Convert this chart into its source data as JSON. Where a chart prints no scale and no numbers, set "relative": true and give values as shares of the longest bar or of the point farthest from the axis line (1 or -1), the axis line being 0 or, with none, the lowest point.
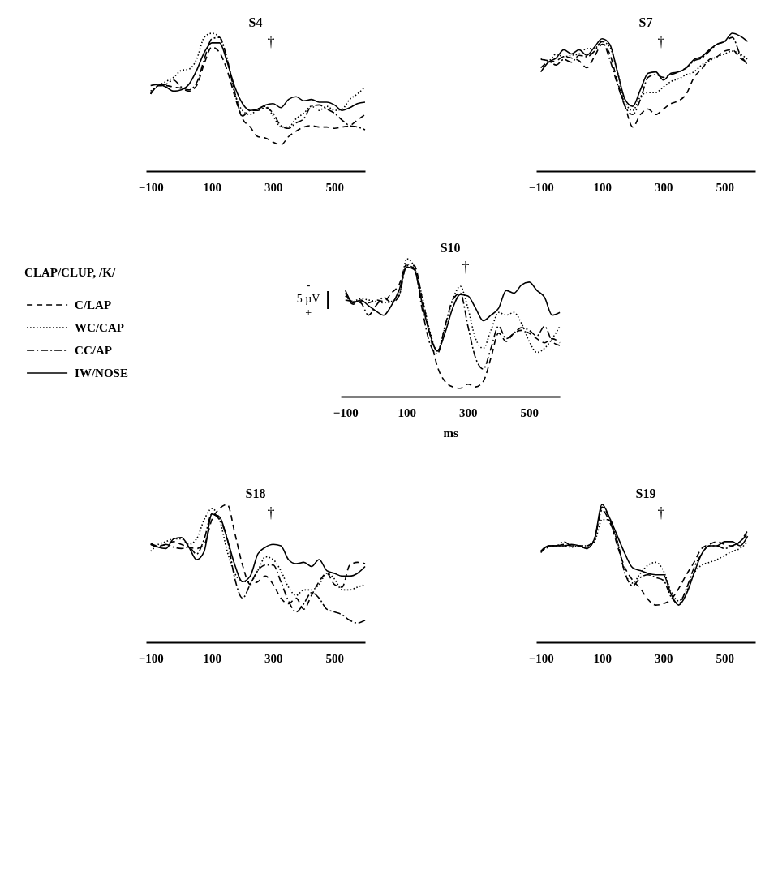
{
  "chart_data": [
    {
      "type": "line",
      "title": "S4",
      "relative": true,
      "xlim": [
        -115,
        600
      ],
      "xticks": [
        -100,
        100,
        300,
        500
      ],
      "grid": false,
      "legend": false,
      "x": [
        -100,
        -75,
        -50,
        -25,
        0,
        25,
        50,
        75,
        100,
        125,
        150,
        175,
        200,
        225,
        250,
        275,
        300,
        325,
        350,
        375,
        400,
        425,
        450,
        475,
        500,
        525,
        550,
        575,
        600
      ],
      "annotations": [
        "†"
      ],
      "series": [
        {
          "color": "#000000",
          "line_style": "dashed",
          "values": [
            0.56,
            0.62,
            0.62,
            0.61,
            0.6,
            0.58,
            0.62,
            0.78,
            0.9,
            0.86,
            0.73,
            0.54,
            0.38,
            0.32,
            0.25,
            0.24,
            0.21,
            0.19,
            0.25,
            0.29,
            0.32,
            0.33,
            0.32,
            0.32,
            0.31,
            0.32,
            0.33,
            0.37,
            0.41
          ]
        },
        {
          "color": "#000000",
          "line_style": "dotted",
          "values": [
            0.58,
            0.62,
            0.65,
            0.68,
            0.73,
            0.74,
            0.81,
            0.97,
            1.0,
            0.97,
            0.81,
            0.56,
            0.44,
            0.41,
            0.45,
            0.47,
            0.4,
            0.32,
            0.32,
            0.38,
            0.42,
            0.47,
            0.44,
            0.47,
            0.44,
            0.45,
            0.52,
            0.56,
            0.61
          ]
        },
        {
          "color": "#000000",
          "line_style": "dashdot",
          "values": [
            0.56,
            0.62,
            0.63,
            0.66,
            0.61,
            0.59,
            0.64,
            0.81,
            0.96,
            0.97,
            0.81,
            0.57,
            0.4,
            0.44,
            0.44,
            0.46,
            0.42,
            0.33,
            0.31,
            0.35,
            0.38,
            0.47,
            0.48,
            0.45,
            0.42,
            0.37,
            0.33,
            0.32,
            0.3
          ]
        },
        {
          "color": "#000000",
          "line_style": "solid",
          "values": [
            0.62,
            0.63,
            0.61,
            0.58,
            0.59,
            0.63,
            0.73,
            0.86,
            0.93,
            0.93,
            0.79,
            0.61,
            0.49,
            0.44,
            0.45,
            0.48,
            0.49,
            0.46,
            0.52,
            0.54,
            0.51,
            0.52,
            0.5,
            0.5,
            0.48,
            0.44,
            0.46,
            0.49,
            0.5
          ]
        }
      ]
    },
    {
      "type": "line",
      "title": "S7",
      "relative": true,
      "xlim": [
        -115,
        600
      ],
      "xticks": [
        -100,
        100,
        300,
        500
      ],
      "grid": false,
      "legend": false,
      "x": [
        -100,
        -75,
        -50,
        -25,
        0,
        25,
        50,
        75,
        100,
        125,
        150,
        175,
        200,
        225,
        250,
        275,
        300,
        325,
        350,
        375,
        400,
        425,
        450,
        475,
        500,
        525,
        550,
        575
      ],
      "annotations": [
        "†"
      ],
      "series": [
        {
          "color": "#000000",
          "line_style": "dashed",
          "values": [
            0.75,
            0.79,
            0.8,
            0.83,
            0.82,
            0.8,
            0.75,
            0.83,
            0.92,
            0.85,
            0.65,
            0.47,
            0.32,
            0.41,
            0.45,
            0.41,
            0.45,
            0.49,
            0.51,
            0.56,
            0.68,
            0.74,
            0.81,
            0.83,
            0.87,
            0.88,
            0.82,
            0.79
          ]
        },
        {
          "color": "#000000",
          "line_style": "dotted",
          "values": [
            0.82,
            0.8,
            0.85,
            0.83,
            0.84,
            0.85,
            0.89,
            0.89,
            0.94,
            0.9,
            0.72,
            0.5,
            0.44,
            0.54,
            0.57,
            0.57,
            0.61,
            0.65,
            0.67,
            0.7,
            0.72,
            0.77,
            0.8,
            0.83,
            0.85,
            0.87,
            0.85,
            0.81
          ]
        },
        {
          "color": "#000000",
          "line_style": "dashdot",
          "values": [
            0.81,
            0.8,
            0.77,
            0.81,
            0.79,
            0.84,
            0.83,
            0.87,
            0.94,
            0.81,
            0.63,
            0.47,
            0.41,
            0.52,
            0.68,
            0.7,
            0.68,
            0.7,
            0.72,
            0.75,
            0.8,
            0.82,
            0.87,
            0.92,
            0.94,
            0.97,
            0.85,
            0.77
          ]
        },
        {
          "color": "#000000",
          "line_style": "solid",
          "values": [
            0.72,
            0.79,
            0.82,
            0.88,
            0.85,
            0.88,
            0.84,
            0.9,
            0.96,
            0.92,
            0.72,
            0.52,
            0.47,
            0.59,
            0.71,
            0.72,
            0.66,
            0.71,
            0.72,
            0.75,
            0.81,
            0.83,
            0.88,
            0.92,
            0.94,
            1.0,
            0.98,
            0.94
          ]
        }
      ]
    },
    {
      "type": "line",
      "title": "S10",
      "xlabel": "ms",
      "legend_title": "CLAP/CLUP, /K/",
      "relative": true,
      "xlim": [
        -115,
        600
      ],
      "xticks": [
        -100,
        100,
        300,
        500
      ],
      "grid": false,
      "legend": "left",
      "x": [
        -100,
        -75,
        -50,
        -25,
        0,
        25,
        50,
        75,
        100,
        125,
        150,
        175,
        200,
        225,
        250,
        275,
        300,
        325,
        350,
        375,
        400,
        425,
        450,
        475,
        500,
        525,
        550,
        575,
        600
      ],
      "annotations": [
        "-",
        "5 µV",
        "+",
        "†"
      ],
      "series": [
        {
          "name": "C/LAP",
          "color": "#000000",
          "line_style": "dashed",
          "values": [
            0.75,
            0.67,
            0.69,
            0.68,
            0.7,
            0.69,
            0.75,
            0.81,
            0.96,
            0.95,
            0.72,
            0.46,
            0.22,
            0.11,
            0.07,
            0.06,
            0.09,
            0.07,
            0.11,
            0.28,
            0.46,
            0.4,
            0.46,
            0.48,
            0.46,
            0.42,
            0.39,
            0.42,
            0.39
          ]
        },
        {
          "name": "WC/CAP",
          "color": "#000000",
          "line_style": "dotted",
          "values": [
            0.73,
            0.69,
            0.71,
            0.7,
            0.69,
            0.68,
            0.69,
            0.73,
            1.0,
            0.94,
            0.73,
            0.48,
            0.33,
            0.5,
            0.7,
            0.8,
            0.64,
            0.42,
            0.35,
            0.48,
            0.61,
            0.59,
            0.61,
            0.53,
            0.4,
            0.32,
            0.35,
            0.42,
            0.51
          ]
        },
        {
          "name": "CC/AP",
          "color": "#000000",
          "line_style": "dashdot",
          "values": [
            0.7,
            0.69,
            0.68,
            0.59,
            0.66,
            0.72,
            0.68,
            0.73,
            0.95,
            0.93,
            0.64,
            0.39,
            0.31,
            0.51,
            0.7,
            0.75,
            0.51,
            0.28,
            0.2,
            0.35,
            0.51,
            0.42,
            0.46,
            0.5,
            0.48,
            0.44,
            0.51,
            0.4,
            0.37
          ]
        },
        {
          "name": "IW/NOSE",
          "color": "#000000",
          "line_style": "solid",
          "values": [
            0.77,
            0.68,
            0.7,
            0.66,
            0.62,
            0.59,
            0.66,
            0.77,
            0.94,
            0.92,
            0.68,
            0.46,
            0.33,
            0.46,
            0.64,
            0.74,
            0.73,
            0.64,
            0.55,
            0.59,
            0.64,
            0.77,
            0.75,
            0.81,
            0.83,
            0.77,
            0.72,
            0.59,
            0.61
          ]
        }
      ]
    },
    {
      "type": "line",
      "title": "S18",
      "relative": true,
      "xlim": [
        -115,
        600
      ],
      "xticks": [
        -100,
        100,
        300,
        500
      ],
      "grid": false,
      "legend": false,
      "x": [
        -100,
        -75,
        -50,
        -25,
        0,
        25,
        50,
        75,
        100,
        125,
        150,
        175,
        200,
        225,
        250,
        275,
        300,
        325,
        350,
        375,
        400,
        425,
        450,
        475,
        500,
        525,
        550,
        575,
        600
      ],
      "annotations": [
        "†"
      ],
      "series": [
        {
          "color": "#000000",
          "line_style": "dashed",
          "values": [
            0.71,
            0.7,
            0.71,
            0.73,
            0.71,
            0.69,
            0.68,
            0.71,
            0.89,
            0.97,
            1.0,
            0.79,
            0.56,
            0.42,
            0.44,
            0.48,
            0.42,
            0.32,
            0.28,
            0.32,
            0.24,
            0.34,
            0.44,
            0.5,
            0.42,
            0.4,
            0.56,
            0.58,
            0.57
          ]
        },
        {
          "color": "#000000",
          "line_style": "dotted",
          "values": [
            0.66,
            0.71,
            0.73,
            0.75,
            0.75,
            0.71,
            0.75,
            0.89,
            0.97,
            0.89,
            0.66,
            0.5,
            0.44,
            0.44,
            0.52,
            0.62,
            0.6,
            0.52,
            0.4,
            0.34,
            0.38,
            0.38,
            0.42,
            0.5,
            0.46,
            0.38,
            0.38,
            0.4,
            0.42
          ]
        },
        {
          "color": "#000000",
          "line_style": "dashdot",
          "values": [
            0.71,
            0.69,
            0.71,
            0.69,
            0.68,
            0.69,
            0.64,
            0.75,
            0.93,
            0.89,
            0.75,
            0.46,
            0.32,
            0.42,
            0.52,
            0.56,
            0.56,
            0.44,
            0.3,
            0.22,
            0.28,
            0.36,
            0.32,
            0.24,
            0.22,
            0.2,
            0.16,
            0.14,
            0.16
          ]
        },
        {
          "color": "#000000",
          "line_style": "solid",
          "values": [
            0.72,
            0.69,
            0.68,
            0.75,
            0.76,
            0.69,
            0.6,
            0.66,
            0.93,
            0.91,
            0.75,
            0.56,
            0.44,
            0.48,
            0.64,
            0.69,
            0.71,
            0.7,
            0.6,
            0.57,
            0.58,
            0.55,
            0.6,
            0.52,
            0.5,
            0.48,
            0.48,
            0.5,
            0.55
          ]
        }
      ]
    },
    {
      "type": "line",
      "title": "S19",
      "relative": true,
      "xlim": [
        -115,
        600
      ],
      "xticks": [
        -100,
        100,
        300,
        500
      ],
      "grid": false,
      "legend": false,
      "x": [
        -100,
        -75,
        -50,
        -25,
        0,
        25,
        50,
        75,
        100,
        125,
        150,
        175,
        200,
        225,
        250,
        275,
        300,
        325,
        350,
        375,
        400,
        425,
        450,
        475,
        500,
        525,
        550,
        575
      ],
      "annotations": [
        "†"
      ],
      "series": [
        {
          "color": "#000000",
          "line_style": "dashed",
          "values": [
            0.66,
            0.7,
            0.7,
            0.71,
            0.7,
            0.7,
            0.7,
            0.75,
            0.98,
            0.89,
            0.7,
            0.54,
            0.45,
            0.39,
            0.31,
            0.27,
            0.28,
            0.31,
            0.39,
            0.49,
            0.58,
            0.68,
            0.71,
            0.73,
            0.71,
            0.7,
            0.73,
            0.81
          ]
        },
        {
          "color": "#000000",
          "line_style": "dotted",
          "values": [
            0.66,
            0.69,
            0.7,
            0.7,
            0.69,
            0.7,
            0.7,
            0.73,
            0.89,
            0.89,
            0.73,
            0.5,
            0.43,
            0.5,
            0.56,
            0.58,
            0.52,
            0.37,
            0.3,
            0.37,
            0.5,
            0.56,
            0.58,
            0.6,
            0.63,
            0.66,
            0.68,
            0.73
          ]
        },
        {
          "color": "#000000",
          "line_style": "dashdot",
          "values": [
            0.65,
            0.7,
            0.7,
            0.73,
            0.7,
            0.7,
            0.68,
            0.75,
            0.96,
            0.87,
            0.73,
            0.5,
            0.41,
            0.47,
            0.49,
            0.47,
            0.45,
            0.33,
            0.28,
            0.39,
            0.54,
            0.64,
            0.7,
            0.7,
            0.68,
            0.7,
            0.73,
            0.79
          ]
        },
        {
          "color": "#000000",
          "line_style": "solid",
          "values": [
            0.66,
            0.7,
            0.7,
            0.7,
            0.71,
            0.7,
            0.68,
            0.75,
            1.0,
            0.9,
            0.77,
            0.64,
            0.54,
            0.52,
            0.5,
            0.49,
            0.49,
            0.35,
            0.27,
            0.35,
            0.5,
            0.64,
            0.7,
            0.7,
            0.73,
            0.73,
            0.7,
            0.77
          ]
        }
      ]
    }
  ]
}
